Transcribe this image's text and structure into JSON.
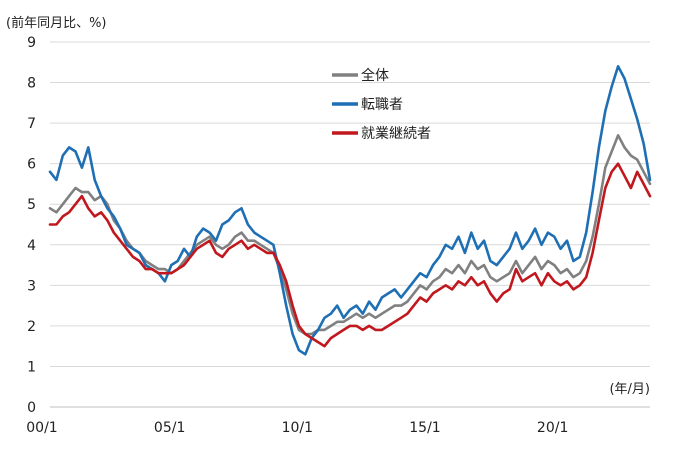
{
  "chart_data": {
    "type": "line",
    "title": "",
    "ylabel": "(前年同月比、%)",
    "xlabel": "(年/月)",
    "ylim": [
      0,
      9
    ],
    "yticks": [
      "0",
      "1",
      "2",
      "3",
      "4",
      "5",
      "6",
      "7",
      "8",
      "9"
    ],
    "xlim": [
      2000.0,
      2023.5
    ],
    "xticks": [
      {
        "label": "00/1",
        "value": 2000.0
      },
      {
        "label": "05/1",
        "value": 2005.0
      },
      {
        "label": "10/1",
        "value": 2010.0
      },
      {
        "label": "15/1",
        "value": 2015.0
      },
      {
        "label": "20/1",
        "value": 2020.0
      }
    ],
    "grid": true,
    "legend_position": "top-center",
    "series": [
      {
        "name": "全体",
        "color": "#808080",
        "points": [
          [
            2000.0,
            4.9
          ],
          [
            2000.25,
            4.8
          ],
          [
            2000.5,
            5.0
          ],
          [
            2000.75,
            5.2
          ],
          [
            2001.0,
            5.4
          ],
          [
            2001.25,
            5.3
          ],
          [
            2001.5,
            5.3
          ],
          [
            2001.75,
            5.1
          ],
          [
            2002.0,
            5.2
          ],
          [
            2002.25,
            5.0
          ],
          [
            2002.5,
            4.6
          ],
          [
            2002.75,
            4.4
          ],
          [
            2003.0,
            4.1
          ],
          [
            2003.25,
            3.9
          ],
          [
            2003.5,
            3.8
          ],
          [
            2003.75,
            3.6
          ],
          [
            2004.0,
            3.5
          ],
          [
            2004.25,
            3.4
          ],
          [
            2004.5,
            3.4
          ],
          [
            2004.75,
            3.3
          ],
          [
            2005.0,
            3.4
          ],
          [
            2005.25,
            3.6
          ],
          [
            2005.5,
            3.8
          ],
          [
            2005.75,
            4.0
          ],
          [
            2006.0,
            4.1
          ],
          [
            2006.25,
            4.2
          ],
          [
            2006.5,
            4.0
          ],
          [
            2006.75,
            3.9
          ],
          [
            2007.0,
            4.0
          ],
          [
            2007.25,
            4.2
          ],
          [
            2007.5,
            4.3
          ],
          [
            2007.75,
            4.1
          ],
          [
            2008.0,
            4.1
          ],
          [
            2008.25,
            4.0
          ],
          [
            2008.5,
            3.9
          ],
          [
            2008.75,
            3.8
          ],
          [
            2009.0,
            3.4
          ],
          [
            2009.25,
            2.9
          ],
          [
            2009.5,
            2.3
          ],
          [
            2009.75,
            1.9
          ],
          [
            2010.0,
            1.8
          ],
          [
            2010.25,
            1.8
          ],
          [
            2010.5,
            1.9
          ],
          [
            2010.75,
            1.9
          ],
          [
            2011.0,
            2.0
          ],
          [
            2011.25,
            2.1
          ],
          [
            2011.5,
            2.1
          ],
          [
            2011.75,
            2.2
          ],
          [
            2012.0,
            2.3
          ],
          [
            2012.25,
            2.2
          ],
          [
            2012.5,
            2.3
          ],
          [
            2012.75,
            2.2
          ],
          [
            2013.0,
            2.3
          ],
          [
            2013.25,
            2.4
          ],
          [
            2013.5,
            2.5
          ],
          [
            2013.75,
            2.5
          ],
          [
            2014.0,
            2.6
          ],
          [
            2014.25,
            2.8
          ],
          [
            2014.5,
            3.0
          ],
          [
            2014.75,
            2.9
          ],
          [
            2015.0,
            3.1
          ],
          [
            2015.25,
            3.2
          ],
          [
            2015.5,
            3.4
          ],
          [
            2015.75,
            3.3
          ],
          [
            2016.0,
            3.5
          ],
          [
            2016.25,
            3.3
          ],
          [
            2016.5,
            3.6
          ],
          [
            2016.75,
            3.4
          ],
          [
            2017.0,
            3.5
          ],
          [
            2017.25,
            3.2
          ],
          [
            2017.5,
            3.1
          ],
          [
            2017.75,
            3.2
          ],
          [
            2018.0,
            3.3
          ],
          [
            2018.25,
            3.6
          ],
          [
            2018.5,
            3.3
          ],
          [
            2018.75,
            3.5
          ],
          [
            2019.0,
            3.7
          ],
          [
            2019.25,
            3.4
          ],
          [
            2019.5,
            3.6
          ],
          [
            2019.75,
            3.5
          ],
          [
            2020.0,
            3.3
          ],
          [
            2020.25,
            3.4
          ],
          [
            2020.5,
            3.2
          ],
          [
            2020.75,
            3.3
          ],
          [
            2021.0,
            3.6
          ],
          [
            2021.25,
            4.2
          ],
          [
            2021.5,
            5.0
          ],
          [
            2021.75,
            5.9
          ],
          [
            2022.0,
            6.3
          ],
          [
            2022.25,
            6.7
          ],
          [
            2022.5,
            6.4
          ],
          [
            2022.75,
            6.2
          ],
          [
            2023.0,
            6.1
          ],
          [
            2023.25,
            5.8
          ],
          [
            2023.5,
            5.5
          ]
        ]
      },
      {
        "name": "転職者",
        "color": "#1f6fb4",
        "points": [
          [
            2000.0,
            5.8
          ],
          [
            2000.25,
            5.6
          ],
          [
            2000.5,
            6.2
          ],
          [
            2000.75,
            6.4
          ],
          [
            2001.0,
            6.3
          ],
          [
            2001.25,
            5.9
          ],
          [
            2001.5,
            6.4
          ],
          [
            2001.75,
            5.6
          ],
          [
            2002.0,
            5.2
          ],
          [
            2002.25,
            4.9
          ],
          [
            2002.5,
            4.7
          ],
          [
            2002.75,
            4.4
          ],
          [
            2003.0,
            4.0
          ],
          [
            2003.25,
            3.9
          ],
          [
            2003.5,
            3.8
          ],
          [
            2003.75,
            3.5
          ],
          [
            2004.0,
            3.4
          ],
          [
            2004.25,
            3.3
          ],
          [
            2004.5,
            3.1
          ],
          [
            2004.75,
            3.5
          ],
          [
            2005.0,
            3.6
          ],
          [
            2005.25,
            3.9
          ],
          [
            2005.5,
            3.7
          ],
          [
            2005.75,
            4.2
          ],
          [
            2006.0,
            4.4
          ],
          [
            2006.25,
            4.3
          ],
          [
            2006.5,
            4.1
          ],
          [
            2006.75,
            4.5
          ],
          [
            2007.0,
            4.6
          ],
          [
            2007.25,
            4.8
          ],
          [
            2007.5,
            4.9
          ],
          [
            2007.75,
            4.5
          ],
          [
            2008.0,
            4.3
          ],
          [
            2008.25,
            4.2
          ],
          [
            2008.5,
            4.1
          ],
          [
            2008.75,
            4.0
          ],
          [
            2009.0,
            3.3
          ],
          [
            2009.25,
            2.5
          ],
          [
            2009.5,
            1.8
          ],
          [
            2009.75,
            1.4
          ],
          [
            2010.0,
            1.3
          ],
          [
            2010.25,
            1.7
          ],
          [
            2010.5,
            1.9
          ],
          [
            2010.75,
            2.2
          ],
          [
            2011.0,
            2.3
          ],
          [
            2011.25,
            2.5
          ],
          [
            2011.5,
            2.2
          ],
          [
            2011.75,
            2.4
          ],
          [
            2012.0,
            2.5
          ],
          [
            2012.25,
            2.3
          ],
          [
            2012.5,
            2.6
          ],
          [
            2012.75,
            2.4
          ],
          [
            2013.0,
            2.7
          ],
          [
            2013.25,
            2.8
          ],
          [
            2013.5,
            2.9
          ],
          [
            2013.75,
            2.7
          ],
          [
            2014.0,
            2.9
          ],
          [
            2014.25,
            3.1
          ],
          [
            2014.5,
            3.3
          ],
          [
            2014.75,
            3.2
          ],
          [
            2015.0,
            3.5
          ],
          [
            2015.25,
            3.7
          ],
          [
            2015.5,
            4.0
          ],
          [
            2015.75,
            3.9
          ],
          [
            2016.0,
            4.2
          ],
          [
            2016.25,
            3.8
          ],
          [
            2016.5,
            4.3
          ],
          [
            2016.75,
            3.9
          ],
          [
            2017.0,
            4.1
          ],
          [
            2017.25,
            3.6
          ],
          [
            2017.5,
            3.5
          ],
          [
            2017.75,
            3.7
          ],
          [
            2018.0,
            3.9
          ],
          [
            2018.25,
            4.3
          ],
          [
            2018.5,
            3.9
          ],
          [
            2018.75,
            4.1
          ],
          [
            2019.0,
            4.4
          ],
          [
            2019.25,
            4.0
          ],
          [
            2019.5,
            4.3
          ],
          [
            2019.75,
            4.2
          ],
          [
            2020.0,
            3.9
          ],
          [
            2020.25,
            4.1
          ],
          [
            2020.5,
            3.6
          ],
          [
            2020.75,
            3.7
          ],
          [
            2021.0,
            4.3
          ],
          [
            2021.25,
            5.3
          ],
          [
            2021.5,
            6.4
          ],
          [
            2021.75,
            7.3
          ],
          [
            2022.0,
            7.9
          ],
          [
            2022.25,
            8.4
          ],
          [
            2022.5,
            8.1
          ],
          [
            2022.75,
            7.6
          ],
          [
            2023.0,
            7.1
          ],
          [
            2023.25,
            6.5
          ],
          [
            2023.5,
            5.6
          ]
        ]
      },
      {
        "name": "就業継続者",
        "color": "#c0181e",
        "points": [
          [
            2000.0,
            4.5
          ],
          [
            2000.25,
            4.5
          ],
          [
            2000.5,
            4.7
          ],
          [
            2000.75,
            4.8
          ],
          [
            2001.0,
            5.0
          ],
          [
            2001.25,
            5.2
          ],
          [
            2001.5,
            4.9
          ],
          [
            2001.75,
            4.7
          ],
          [
            2002.0,
            4.8
          ],
          [
            2002.25,
            4.6
          ],
          [
            2002.5,
            4.3
          ],
          [
            2002.75,
            4.1
          ],
          [
            2003.0,
            3.9
          ],
          [
            2003.25,
            3.7
          ],
          [
            2003.5,
            3.6
          ],
          [
            2003.75,
            3.4
          ],
          [
            2004.0,
            3.4
          ],
          [
            2004.25,
            3.3
          ],
          [
            2004.5,
            3.3
          ],
          [
            2004.75,
            3.3
          ],
          [
            2005.0,
            3.4
          ],
          [
            2005.25,
            3.5
          ],
          [
            2005.5,
            3.7
          ],
          [
            2005.75,
            3.9
          ],
          [
            2006.0,
            4.0
          ],
          [
            2006.25,
            4.1
          ],
          [
            2006.5,
            3.8
          ],
          [
            2006.75,
            3.7
          ],
          [
            2007.0,
            3.9
          ],
          [
            2007.25,
            4.0
          ],
          [
            2007.5,
            4.1
          ],
          [
            2007.75,
            3.9
          ],
          [
            2008.0,
            4.0
          ],
          [
            2008.25,
            3.9
          ],
          [
            2008.5,
            3.8
          ],
          [
            2008.75,
            3.8
          ],
          [
            2009.0,
            3.5
          ],
          [
            2009.25,
            3.1
          ],
          [
            2009.5,
            2.5
          ],
          [
            2009.75,
            2.0
          ],
          [
            2010.0,
            1.8
          ],
          [
            2010.25,
            1.7
          ],
          [
            2010.5,
            1.6
          ],
          [
            2010.75,
            1.5
          ],
          [
            2011.0,
            1.7
          ],
          [
            2011.25,
            1.8
          ],
          [
            2011.5,
            1.9
          ],
          [
            2011.75,
            2.0
          ],
          [
            2012.0,
            2.0
          ],
          [
            2012.25,
            1.9
          ],
          [
            2012.5,
            2.0
          ],
          [
            2012.75,
            1.9
          ],
          [
            2013.0,
            1.9
          ],
          [
            2013.25,
            2.0
          ],
          [
            2013.5,
            2.1
          ],
          [
            2013.75,
            2.2
          ],
          [
            2014.0,
            2.3
          ],
          [
            2014.25,
            2.5
          ],
          [
            2014.5,
            2.7
          ],
          [
            2014.75,
            2.6
          ],
          [
            2015.0,
            2.8
          ],
          [
            2015.25,
            2.9
          ],
          [
            2015.5,
            3.0
          ],
          [
            2015.75,
            2.9
          ],
          [
            2016.0,
            3.1
          ],
          [
            2016.25,
            3.0
          ],
          [
            2016.5,
            3.2
          ],
          [
            2016.75,
            3.0
          ],
          [
            2017.0,
            3.1
          ],
          [
            2017.25,
            2.8
          ],
          [
            2017.5,
            2.6
          ],
          [
            2017.75,
            2.8
          ],
          [
            2018.0,
            2.9
          ],
          [
            2018.25,
            3.4
          ],
          [
            2018.5,
            3.1
          ],
          [
            2018.75,
            3.2
          ],
          [
            2019.0,
            3.3
          ],
          [
            2019.25,
            3.0
          ],
          [
            2019.5,
            3.3
          ],
          [
            2019.75,
            3.1
          ],
          [
            2020.0,
            3.0
          ],
          [
            2020.25,
            3.1
          ],
          [
            2020.5,
            2.9
          ],
          [
            2020.75,
            3.0
          ],
          [
            2021.0,
            3.2
          ],
          [
            2021.25,
            3.8
          ],
          [
            2021.5,
            4.6
          ],
          [
            2021.75,
            5.4
          ],
          [
            2022.0,
            5.8
          ],
          [
            2022.25,
            6.0
          ],
          [
            2022.5,
            5.7
          ],
          [
            2022.75,
            5.4
          ],
          [
            2023.0,
            5.8
          ],
          [
            2023.25,
            5.5
          ],
          [
            2023.5,
            5.2
          ]
        ]
      }
    ]
  }
}
